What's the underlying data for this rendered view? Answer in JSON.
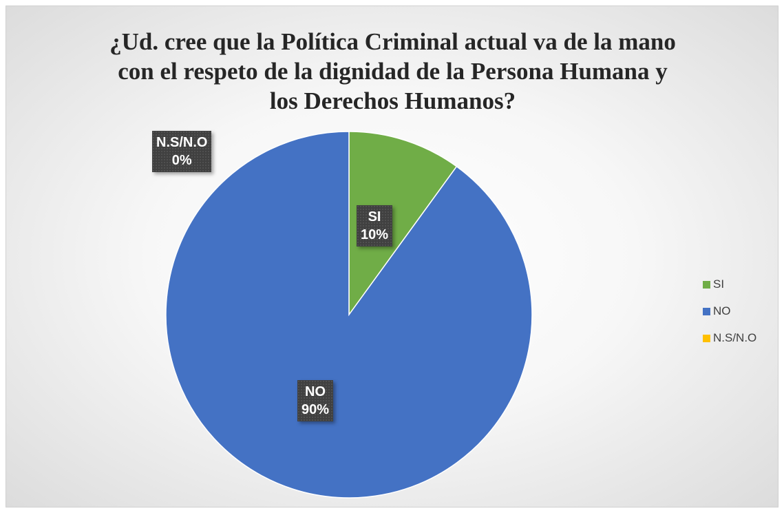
{
  "chart_data": {
    "type": "pie",
    "title": "¿Ud. cree que la Política Criminal actual va de la mano con el respeto de la dignidad de la Persona Humana y los Derechos Humanos?",
    "title_lines": [
      "¿Ud. cree que la Política Criminal actual va de la mano",
      "con el respeto de la dignidad de la Persona Humana y",
      "los Derechos Humanos?"
    ],
    "categories": [
      "SI",
      "NO",
      "N.S/N.O"
    ],
    "values": [
      10,
      90,
      0
    ],
    "value_labels": [
      "10%",
      "90%",
      "0%"
    ],
    "colors": [
      "#70AD47",
      "#4472C4",
      "#FFC000"
    ],
    "legend_position": "right"
  }
}
